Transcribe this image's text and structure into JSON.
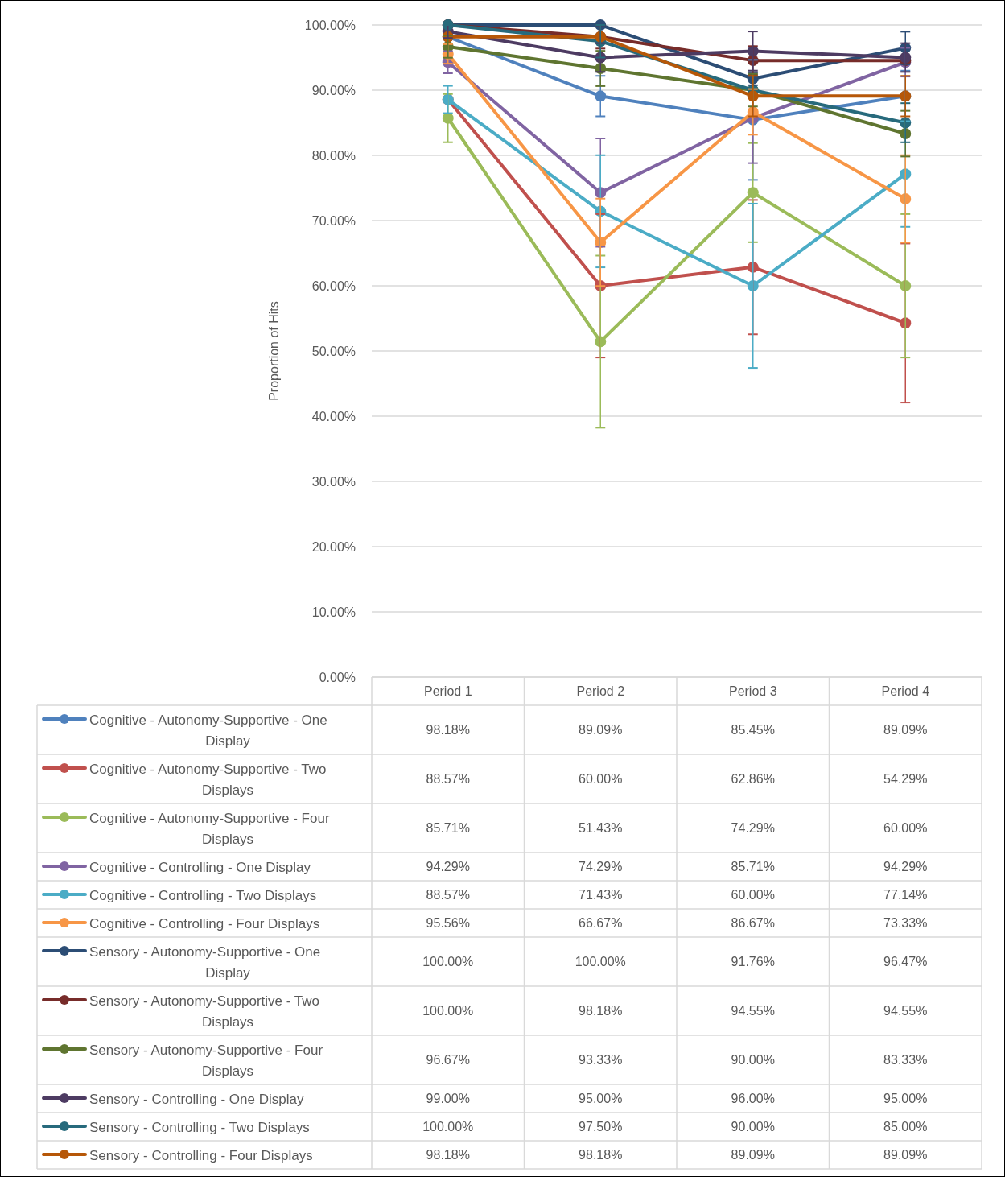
{
  "chart_data": {
    "type": "line",
    "ylabel": "Proportion of Hits",
    "categories": [
      "Period 1",
      "Period 2",
      "Period 3",
      "Period 4"
    ],
    "ylim": [
      0,
      100
    ],
    "yticks": [
      {
        "value": 0,
        "label": "0.00%"
      },
      {
        "value": 10,
        "label": "10.00%"
      },
      {
        "value": 20,
        "label": "20.00%"
      },
      {
        "value": 30,
        "label": "30.00%"
      },
      {
        "value": 40,
        "label": "40.00%"
      },
      {
        "value": 50,
        "label": "50.00%"
      },
      {
        "value": 60,
        "label": "60.00%"
      },
      {
        "value": 70,
        "label": "70.00%"
      },
      {
        "value": 80,
        "label": "80.00%"
      },
      {
        "value": 90,
        "label": "90.00%"
      },
      {
        "value": 100,
        "label": "100.00%"
      }
    ],
    "grid": "y",
    "legend": "bottom",
    "marker": "circle",
    "line_style": "solid",
    "series": [
      {
        "name": "Cognitive - Autonomy-Supportive - One Display",
        "color": "#4f81bd",
        "values": [
          98.18,
          89.09,
          85.45,
          89.09
        ],
        "errors": [
          null,
          3.1,
          9.2,
          3.9
        ],
        "value_labels": [
          "98.18%",
          "89.09%",
          "85.45%",
          "89.09%"
        ]
      },
      {
        "name": "Cognitive - Autonomy-Supportive - Two Displays",
        "color": "#c0504d",
        "values": [
          88.57,
          60.0,
          62.86,
          54.29
        ],
        "errors": [
          null,
          11,
          10.3,
          12.2
        ],
        "value_labels": [
          "88.57%",
          "60.00%",
          "62.86%",
          "54.29%"
        ]
      },
      {
        "name": "Cognitive - Autonomy-Supportive - Four Displays",
        "color": "#9bbb59",
        "values": [
          85.71,
          51.43,
          74.29,
          60.0
        ],
        "errors": [
          3.7,
          13.2,
          7.6,
          11
        ],
        "value_labels": [
          "85.71%",
          "51.43%",
          "74.29%",
          "60.00%"
        ]
      },
      {
        "name": "Cognitive - Controlling - One Display",
        "color": "#8064a2",
        "values": [
          94.29,
          74.29,
          85.71,
          94.29
        ],
        "errors": [
          1.7,
          8.3,
          6.9,
          2.2
        ],
        "value_labels": [
          "94.29%",
          "74.29%",
          "85.71%",
          "94.29%"
        ]
      },
      {
        "name": "Cognitive - Controlling - Two Displays",
        "color": "#4bacc6",
        "values": [
          88.57,
          71.43,
          60.0,
          77.14
        ],
        "errors": [
          2.1,
          8.6,
          12.6,
          8.1
        ],
        "value_labels": [
          "88.57%",
          "71.43%",
          "60.00%",
          "77.14%"
        ]
      },
      {
        "name": "Cognitive - Controlling - Four Displays",
        "color": "#f79646",
        "values": [
          95.56,
          66.67,
          86.67,
          73.33
        ],
        "errors": [
          1.5,
          6.7,
          3.5,
          6.7
        ],
        "value_labels": [
          "95.56%",
          "66.67%",
          "86.67%",
          "73.33%"
        ]
      },
      {
        "name": "Sensory - Autonomy-Supportive - One Display",
        "color": "#2c4d75",
        "values": [
          100.0,
          100.0,
          91.76,
          96.47
        ],
        "errors": [
          0,
          0,
          1,
          2.5
        ],
        "value_labels": [
          "100.00%",
          "100.00%",
          "91.76%",
          "96.47%"
        ]
      },
      {
        "name": "Sensory - Autonomy-Supportive - Two Displays",
        "color": "#772c2a",
        "values": [
          100.0,
          98.18,
          94.55,
          94.55
        ],
        "errors": [
          0,
          1.8,
          2.2,
          null
        ],
        "value_labels": [
          "100.00%",
          "98.18%",
          "94.55%",
          "94.55%"
        ]
      },
      {
        "name": "Sensory - Autonomy-Supportive - Four Displays",
        "color": "#5f7530",
        "values": [
          96.67,
          93.33,
          90.0,
          83.33
        ],
        "errors": [
          1.7,
          2.7,
          2.5,
          3.5
        ],
        "value_labels": [
          "96.67%",
          "93.33%",
          "90.00%",
          "83.33%"
        ]
      },
      {
        "name": "Sensory - Controlling - One Display",
        "color": "#4d3b62",
        "values": [
          99.0,
          95.0,
          96.0,
          95.0
        ],
        "errors": [
          1,
          2.2,
          3,
          2.2
        ],
        "value_labels": [
          "99.00%",
          "95.00%",
          "96.00%",
          "95.00%"
        ]
      },
      {
        "name": "Sensory - Controlling - Two Displays",
        "color": "#276a7c",
        "values": [
          100.0,
          97.5,
          90.0,
          85.0
        ],
        "errors": [
          0,
          2.5,
          null,
          3
        ],
        "value_labels": [
          "100.00%",
          "97.50%",
          "90.00%",
          "85.00%"
        ]
      },
      {
        "name": "Sensory - Controlling - Four Displays",
        "color": "#b65708",
        "values": [
          98.18,
          98.18,
          89.09,
          89.09
        ],
        "errors": [
          null,
          null,
          3.1,
          3.1
        ],
        "value_labels": [
          "98.18%",
          "98.18%",
          "89.09%",
          "89.09%"
        ]
      }
    ]
  }
}
